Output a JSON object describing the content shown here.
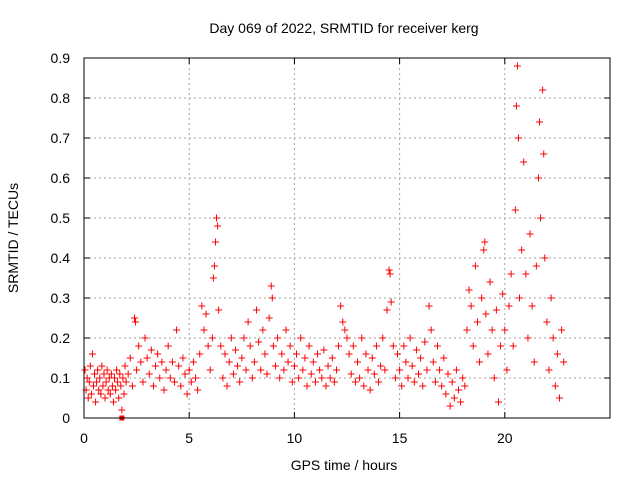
{
  "chart_data": {
    "type": "scatter",
    "title": "Day 069 of 2022, SRMTID for receiver kerg",
    "xlabel": "GPS time / hours",
    "ylabel": "SRMTID / TECUs",
    "xlim": [
      0,
      25
    ],
    "ylim": [
      0,
      0.9
    ],
    "xticks": [
      0,
      5,
      10,
      15,
      20
    ],
    "yticks": [
      0,
      0.1,
      0.2,
      0.3,
      0.4,
      0.5,
      0.6,
      0.7,
      0.8,
      0.9
    ],
    "xtick_labels": [
      "0",
      "5",
      "10",
      "15",
      "20"
    ],
    "ytick_labels": [
      "0",
      "0.1",
      "0.2",
      "0.3",
      "0.4",
      "0.5",
      "0.6",
      "0.7",
      "0.8",
      "0.9"
    ],
    "grid": true,
    "marker": "+",
    "color": "#ff0000",
    "series": [
      {
        "name": "SRMTID",
        "points": [
          [
            0.05,
            0.12
          ],
          [
            0.1,
            0.07
          ],
          [
            0.15,
            0.1
          ],
          [
            0.2,
            0.05
          ],
          [
            0.25,
            0.09
          ],
          [
            0.3,
            0.13
          ],
          [
            0.35,
            0.06
          ],
          [
            0.4,
            0.16
          ],
          [
            0.45,
            0.08
          ],
          [
            0.5,
            0.11
          ],
          [
            0.55,
            0.04
          ],
          [
            0.6,
            0.09
          ],
          [
            0.65,
            0.12
          ],
          [
            0.7,
            0.07
          ],
          [
            0.75,
            0.1
          ],
          [
            0.8,
            0.06
          ],
          [
            0.85,
            0.13
          ],
          [
            0.9,
            0.08
          ],
          [
            0.95,
            0.11
          ],
          [
            1.0,
            0.05
          ],
          [
            1.05,
            0.09
          ],
          [
            1.1,
            0.12
          ],
          [
            1.15,
            0.07
          ],
          [
            1.2,
            0.1
          ],
          [
            1.25,
            0.06
          ],
          [
            1.3,
            0.11
          ],
          [
            1.35,
            0.08
          ],
          [
            1.4,
            0.04
          ],
          [
            1.45,
            0.1
          ],
          [
            1.5,
            0.07
          ],
          [
            1.55,
            0.12
          ],
          [
            1.6,
            0.09
          ],
          [
            1.65,
            0.05
          ],
          [
            1.7,
            0.11
          ],
          [
            1.75,
            0.08
          ],
          [
            1.8,
            0.02
          ],
          [
            1.85,
            0.1
          ],
          [
            1.9,
            0.06
          ],
          [
            1.95,
            0.13
          ],
          [
            2.0,
            0.09
          ],
          [
            2.1,
            0.11
          ],
          [
            2.2,
            0.15
          ],
          [
            2.3,
            0.08
          ],
          [
            2.4,
            0.25
          ],
          [
            2.45,
            0.24
          ],
          [
            2.5,
            0.12
          ],
          [
            2.6,
            0.18
          ],
          [
            2.7,
            0.14
          ],
          [
            2.8,
            0.09
          ],
          [
            2.9,
            0.2
          ],
          [
            3.0,
            0.15
          ],
          [
            3.1,
            0.11
          ],
          [
            3.2,
            0.17
          ],
          [
            3.3,
            0.08
          ],
          [
            3.4,
            0.13
          ],
          [
            3.5,
            0.16
          ],
          [
            3.6,
            0.1
          ],
          [
            3.7,
            0.14
          ],
          [
            3.8,
            0.07
          ],
          [
            3.9,
            0.12
          ],
          [
            4.0,
            0.18
          ],
          [
            4.1,
            0.1
          ],
          [
            4.2,
            0.14
          ],
          [
            4.3,
            0.09
          ],
          [
            4.4,
            0.22
          ],
          [
            4.5,
            0.13
          ],
          [
            4.6,
            0.08
          ],
          [
            4.7,
            0.15
          ],
          [
            4.8,
            0.11
          ],
          [
            4.9,
            0.06
          ],
          [
            5.0,
            0.12
          ],
          [
            5.1,
            0.09
          ],
          [
            5.2,
            0.14
          ],
          [
            5.3,
            0.1
          ],
          [
            5.4,
            0.07
          ],
          [
            5.5,
            0.16
          ],
          [
            5.6,
            0.28
          ],
          [
            5.7,
            0.22
          ],
          [
            5.8,
            0.26
          ],
          [
            5.9,
            0.18
          ],
          [
            6.0,
            0.12
          ],
          [
            6.1,
            0.2
          ],
          [
            6.15,
            0.35
          ],
          [
            6.2,
            0.38
          ],
          [
            6.25,
            0.44
          ],
          [
            6.3,
            0.5
          ],
          [
            6.35,
            0.48
          ],
          [
            6.4,
            0.27
          ],
          [
            6.5,
            0.18
          ],
          [
            6.6,
            0.1
          ],
          [
            6.7,
            0.16
          ],
          [
            6.8,
            0.08
          ],
          [
            6.9,
            0.14
          ],
          [
            7.0,
            0.2
          ],
          [
            7.1,
            0.11
          ],
          [
            7.2,
            0.17
          ],
          [
            7.3,
            0.13
          ],
          [
            7.4,
            0.09
          ],
          [
            7.5,
            0.15
          ],
          [
            7.6,
            0.2
          ],
          [
            7.7,
            0.12
          ],
          [
            7.8,
            0.24
          ],
          [
            7.9,
            0.18
          ],
          [
            8.0,
            0.1
          ],
          [
            8.1,
            0.14
          ],
          [
            8.2,
            0.27
          ],
          [
            8.3,
            0.19
          ],
          [
            8.4,
            0.12
          ],
          [
            8.5,
            0.22
          ],
          [
            8.6,
            0.16
          ],
          [
            8.7,
            0.11
          ],
          [
            8.8,
            0.25
          ],
          [
            8.9,
            0.33
          ],
          [
            8.95,
            0.3
          ],
          [
            9.0,
            0.18
          ],
          [
            9.1,
            0.13
          ],
          [
            9.2,
            0.2
          ],
          [
            9.3,
            0.1
          ],
          [
            9.4,
            0.16
          ],
          [
            9.5,
            0.12
          ],
          [
            9.6,
            0.22
          ],
          [
            9.7,
            0.14
          ],
          [
            9.8,
            0.18
          ],
          [
            9.9,
            0.09
          ],
          [
            10.0,
            0.13
          ],
          [
            10.1,
            0.16
          ],
          [
            10.2,
            0.1
          ],
          [
            10.3,
            0.2
          ],
          [
            10.4,
            0.12
          ],
          [
            10.5,
            0.15
          ],
          [
            10.6,
            0.08
          ],
          [
            10.7,
            0.18
          ],
          [
            10.8,
            0.11
          ],
          [
            10.9,
            0.14
          ],
          [
            11.0,
            0.09
          ],
          [
            11.1,
            0.16
          ],
          [
            11.2,
            0.12
          ],
          [
            11.3,
            0.1
          ],
          [
            11.4,
            0.17
          ],
          [
            11.5,
            0.08
          ],
          [
            11.6,
            0.13
          ],
          [
            11.7,
            0.1
          ],
          [
            11.8,
            0.15
          ],
          [
            11.9,
            0.09
          ],
          [
            12.0,
            0.12
          ],
          [
            12.1,
            0.18
          ],
          [
            12.2,
            0.28
          ],
          [
            12.3,
            0.24
          ],
          [
            12.4,
            0.22
          ],
          [
            12.5,
            0.2
          ],
          [
            12.6,
            0.16
          ],
          [
            12.7,
            0.11
          ],
          [
            12.8,
            0.18
          ],
          [
            12.9,
            0.09
          ],
          [
            13.0,
            0.14
          ],
          [
            13.1,
            0.1
          ],
          [
            13.2,
            0.2
          ],
          [
            13.3,
            0.08
          ],
          [
            13.4,
            0.16
          ],
          [
            13.5,
            0.12
          ],
          [
            13.6,
            0.07
          ],
          [
            13.7,
            0.15
          ],
          [
            13.8,
            0.11
          ],
          [
            13.9,
            0.18
          ],
          [
            14.0,
            0.09
          ],
          [
            14.1,
            0.13
          ],
          [
            14.2,
            0.2
          ],
          [
            14.3,
            0.12
          ],
          [
            14.4,
            0.27
          ],
          [
            14.5,
            0.37
          ],
          [
            14.55,
            0.36
          ],
          [
            14.6,
            0.29
          ],
          [
            14.7,
            0.18
          ],
          [
            14.8,
            0.1
          ],
          [
            14.9,
            0.16
          ],
          [
            15.0,
            0.12
          ],
          [
            15.1,
            0.08
          ],
          [
            15.2,
            0.18
          ],
          [
            15.3,
            0.14
          ],
          [
            15.4,
            0.1
          ],
          [
            15.5,
            0.2
          ],
          [
            15.6,
            0.13
          ],
          [
            15.7,
            0.09
          ],
          [
            15.8,
            0.17
          ],
          [
            15.9,
            0.11
          ],
          [
            16.0,
            0.15
          ],
          [
            16.1,
            0.08
          ],
          [
            16.2,
            0.19
          ],
          [
            16.3,
            0.12
          ],
          [
            16.4,
            0.28
          ],
          [
            16.5,
            0.22
          ],
          [
            16.6,
            0.14
          ],
          [
            16.7,
            0.09
          ],
          [
            16.8,
            0.18
          ],
          [
            16.9,
            0.12
          ],
          [
            17.0,
            0.08
          ],
          [
            17.1,
            0.15
          ],
          [
            17.2,
            0.06
          ],
          [
            17.3,
            0.11
          ],
          [
            17.4,
            0.03
          ],
          [
            17.5,
            0.09
          ],
          [
            17.6,
            0.05
          ],
          [
            17.7,
            0.12
          ],
          [
            17.8,
            0.07
          ],
          [
            17.9,
            0.04
          ],
          [
            18.0,
            0.1
          ],
          [
            18.1,
            0.08
          ],
          [
            18.2,
            0.22
          ],
          [
            18.3,
            0.32
          ],
          [
            18.4,
            0.28
          ],
          [
            18.5,
            0.18
          ],
          [
            18.6,
            0.38
          ],
          [
            18.7,
            0.24
          ],
          [
            18.8,
            0.14
          ],
          [
            18.9,
            0.3
          ],
          [
            19.0,
            0.42
          ],
          [
            19.05,
            0.44
          ],
          [
            19.1,
            0.26
          ],
          [
            19.2,
            0.16
          ],
          [
            19.3,
            0.34
          ],
          [
            19.4,
            0.22
          ],
          [
            19.5,
            0.1
          ],
          [
            19.6,
            0.27
          ],
          [
            19.7,
            0.04
          ],
          [
            19.8,
            0.18
          ],
          [
            19.9,
            0.31
          ],
          [
            20.0,
            0.22
          ],
          [
            20.1,
            0.12
          ],
          [
            20.2,
            0.28
          ],
          [
            20.3,
            0.36
          ],
          [
            20.4,
            0.18
          ],
          [
            20.5,
            0.52
          ],
          [
            20.55,
            0.78
          ],
          [
            20.6,
            0.88
          ],
          [
            20.65,
            0.7
          ],
          [
            20.7,
            0.3
          ],
          [
            20.8,
            0.42
          ],
          [
            20.9,
            0.64
          ],
          [
            21.0,
            0.36
          ],
          [
            21.1,
            0.2
          ],
          [
            21.2,
            0.46
          ],
          [
            21.3,
            0.28
          ],
          [
            21.4,
            0.14
          ],
          [
            21.5,
            0.38
          ],
          [
            21.6,
            0.6
          ],
          [
            21.65,
            0.74
          ],
          [
            21.7,
            0.5
          ],
          [
            21.8,
            0.82
          ],
          [
            21.85,
            0.66
          ],
          [
            21.9,
            0.4
          ],
          [
            22.0,
            0.24
          ],
          [
            22.1,
            0.12
          ],
          [
            22.2,
            0.3
          ],
          [
            22.3,
            0.2
          ],
          [
            22.4,
            0.08
          ],
          [
            22.5,
            0.16
          ],
          [
            22.6,
            0.05
          ],
          [
            22.7,
            0.22
          ],
          [
            22.8,
            0.14
          ]
        ]
      }
    ],
    "special_markers": [
      {
        "type": "square",
        "x": 1.8,
        "y": 0.0
      }
    ]
  }
}
